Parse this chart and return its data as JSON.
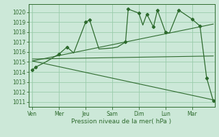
{
  "xlabel": "Pression niveau de la mer( hPa )",
  "background_color": "#cce8d8",
  "grid_color": "#99ccaa",
  "line_color": "#2d6a2d",
  "ylim": [
    1010.5,
    1020.8
  ],
  "yticks": [
    1011,
    1012,
    1013,
    1014,
    1015,
    1016,
    1017,
    1018,
    1019,
    1020
  ],
  "x_labels": [
    "Ven",
    "Mer",
    "Jeu",
    "Sam",
    "Dim",
    "Lun",
    "Mar"
  ],
  "x_positions": [
    0,
    1,
    2,
    3,
    4,
    5,
    6
  ],
  "xlim": [
    -0.15,
    6.85
  ],
  "main_x": [
    0.0,
    0.13,
    0.5,
    1.0,
    1.3,
    1.55,
    2.0,
    2.15,
    2.5,
    3.0,
    3.2,
    3.5,
    3.6,
    4.0,
    4.15,
    4.3,
    4.55,
    4.7,
    5.0,
    5.15,
    5.5,
    6.0,
    6.3,
    6.55,
    6.8
  ],
  "main_y": [
    1014.2,
    1014.5,
    1015.0,
    1015.8,
    1016.5,
    1015.9,
    1019.0,
    1019.2,
    1016.3,
    1016.4,
    1016.5,
    1017.0,
    1020.3,
    1019.9,
    1018.7,
    1019.8,
    1018.5,
    1020.2,
    1018.0,
    1017.9,
    1020.2,
    1019.3,
    1018.6,
    1013.4,
    1011.1
  ],
  "trend1_x": [
    0.0,
    6.8
  ],
  "trend1_y": [
    1015.1,
    1018.8
  ],
  "trend2_x": [
    0.0,
    6.8
  ],
  "trend2_y": [
    1015.3,
    1015.6
  ],
  "trend3_x": [
    0.0,
    6.8
  ],
  "trend3_y": [
    1015.1,
    1011.2
  ],
  "marker_x": [
    0.0,
    0.13,
    1.0,
    1.3,
    2.0,
    2.15,
    3.5,
    3.6,
    4.0,
    4.3,
    4.55,
    4.7,
    5.0,
    5.5,
    6.0,
    6.3,
    6.55,
    6.8
  ],
  "marker_y": [
    1014.2,
    1014.5,
    1015.8,
    1016.5,
    1019.0,
    1019.2,
    1017.0,
    1020.3,
    1019.9,
    1019.8,
    1018.5,
    1020.2,
    1018.0,
    1020.2,
    1019.3,
    1018.6,
    1013.4,
    1011.1
  ]
}
